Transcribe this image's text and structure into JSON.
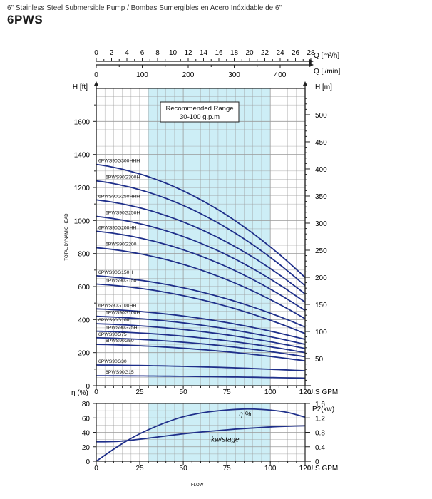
{
  "header": {
    "subtitle": "6\" Stainless Steel Submersible Pump / Bombas Sumergibles en Acero Inóxidable de 6\"",
    "model": "6PWS"
  },
  "colors": {
    "curve": "#1f2f8a",
    "band": "#cdeef6",
    "grid": "#9a9a9a",
    "frame": "#222222"
  },
  "chart_data": [
    {
      "type": "line",
      "title": "Head vs Flow",
      "xlabel": "U.S GPM",
      "ylabel": "H [ft]",
      "y2label": "H [m]",
      "vertical_label": "TOTAL DYNAMIC HEAD",
      "xlim": [
        0,
        120
      ],
      "ylim_ft": [
        0,
        1800
      ],
      "ylim_m": [
        0,
        540
      ],
      "x_ticks": [
        0,
        25,
        50,
        75,
        100,
        120
      ],
      "x_tick_labels": [
        "0",
        "25",
        "50",
        "75",
        "100",
        "120"
      ],
      "y_ticks_ft": [
        0,
        200,
        400,
        600,
        800,
        1000,
        1200,
        1400,
        1600
      ],
      "y_tick_labels_ft": [
        "0",
        "200",
        "400",
        "600",
        "800",
        "1000",
        "1200",
        "1400",
        "1600"
      ],
      "y_ticks_m": [
        50,
        100,
        150,
        200,
        250,
        300,
        350,
        400,
        450,
        500
      ],
      "y_tick_labels_m": [
        "50",
        "100",
        "150",
        "200",
        "250",
        "300",
        "350",
        "400",
        "450",
        "500"
      ],
      "top_axis_m3h": {
        "label": "Q [m³/h]",
        "ticks": [
          0,
          2,
          4,
          6,
          8,
          10,
          12,
          14,
          16,
          18,
          20,
          22,
          24,
          26,
          28
        ],
        "tick_labels": [
          "0",
          "2",
          "4",
          "6",
          "8",
          "10",
          "12",
          "14",
          "16",
          "18",
          "20",
          "22",
          "24",
          "26",
          "28"
        ]
      },
      "top_axis_lmin": {
        "label": "Q [l/min]",
        "ticks": [
          0,
          100,
          200,
          300,
          400
        ],
        "tick_labels": [
          "0",
          "100",
          "200",
          "300",
          "400"
        ]
      },
      "recommended_range": {
        "title": "Recommended Range",
        "subtitle": "30-100 g.p.m",
        "x_from": 30,
        "x_to": 100
      },
      "series": [
        {
          "name": "6PWS90G300HHH",
          "shutoff_ft": 1340,
          "end_ft": 655,
          "x_end": 120
        },
        {
          "name": "6PWS90G300H",
          "shutoff_ft": 1240,
          "end_ft": 605,
          "x_end": 120
        },
        {
          "name": "6PWS90G250HHH",
          "shutoff_ft": 1125,
          "end_ft": 555,
          "x_end": 120
        },
        {
          "name": "6PWS90G250H",
          "shutoff_ft": 1025,
          "end_ft": 505,
          "x_end": 120
        },
        {
          "name": "6PWS90G200HH",
          "shutoff_ft": 935,
          "end_ft": 455,
          "x_end": 120
        },
        {
          "name": "6PWS90G200",
          "shutoff_ft": 835,
          "end_ft": 405,
          "x_end": 120
        },
        {
          "name": "6PWS90G150H",
          "shutoff_ft": 665,
          "end_ft": 355,
          "x_end": 120
        },
        {
          "name": "6PWS90G150",
          "shutoff_ft": 615,
          "end_ft": 315,
          "x_end": 120
        },
        {
          "name": "6PWS90G100HH",
          "shutoff_ft": 465,
          "end_ft": 280,
          "x_end": 120
        },
        {
          "name": "6PWS90G100H",
          "shutoff_ft": 420,
          "end_ft": 250,
          "x_end": 120
        },
        {
          "name": "6PWS90G100",
          "shutoff_ft": 375,
          "end_ft": 225,
          "x_end": 120
        },
        {
          "name": "6PWS90G75H",
          "shutoff_ft": 330,
          "end_ft": 200,
          "x_end": 120
        },
        {
          "name": "6PWS90G75",
          "shutoff_ft": 290,
          "end_ft": 175,
          "x_end": 120
        },
        {
          "name": "6PWS90G50",
          "shutoff_ft": 250,
          "end_ft": 150,
          "x_end": 120
        },
        {
          "name": "6PWS90G30",
          "shutoff_ft": 125,
          "end_ft": 90,
          "x_end": 120
        },
        {
          "name": "6PWS90G15",
          "shutoff_ft": 60,
          "end_ft": 45,
          "x_end": 120
        }
      ]
    },
    {
      "type": "line",
      "title": "Efficiency and Power",
      "xlabel": "U.S GPM",
      "x_footer": "FLOW",
      "ylabel": "η (%)",
      "y2label": "P2(kw)",
      "xlim": [
        0,
        120
      ],
      "ylim": [
        0,
        80
      ],
      "y2lim": [
        0,
        1.6
      ],
      "x_ticks": [
        0,
        25,
        50,
        75,
        100,
        120
      ],
      "x_tick_labels": [
        "0",
        "25",
        "50",
        "75",
        "100",
        "120"
      ],
      "y_ticks": [
        0,
        20,
        40,
        60,
        80
      ],
      "y_tick_labels": [
        "0",
        "20",
        "40",
        "60",
        "80"
      ],
      "y2_ticks": [
        0,
        0.4,
        0.8,
        1.2,
        1.6
      ],
      "y2_tick_labels": [
        "0",
        "0.4",
        "0.8",
        "1.2",
        "1.6"
      ],
      "recommended_range": {
        "x_from": 30,
        "x_to": 100
      },
      "series": [
        {
          "name": "η %",
          "axis": "left",
          "x": [
            0,
            10,
            20,
            30,
            40,
            50,
            60,
            70,
            80,
            90,
            100,
            110,
            120
          ],
          "y": [
            0,
            17,
            32,
            44,
            54,
            62,
            67,
            70,
            72,
            72.5,
            71,
            68,
            61
          ]
        },
        {
          "name": "kw/stage",
          "axis": "right",
          "x": [
            0,
            10,
            20,
            30,
            40,
            50,
            60,
            70,
            80,
            90,
            100,
            110,
            120
          ],
          "y": [
            0.54,
            0.54,
            0.58,
            0.64,
            0.7,
            0.76,
            0.81,
            0.85,
            0.89,
            0.92,
            0.95,
            0.97,
            0.98
          ]
        }
      ]
    }
  ]
}
